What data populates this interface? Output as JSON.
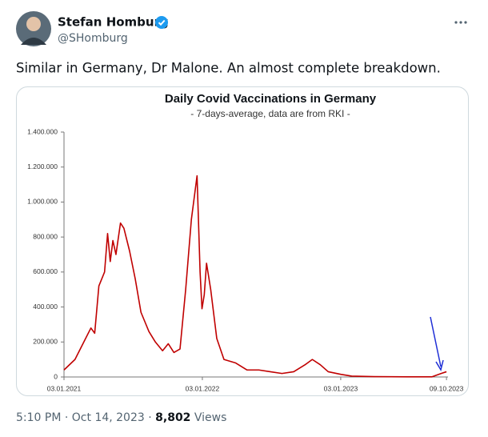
{
  "tweet": {
    "name": "Stefan Homburg",
    "handle": "@SHomburg",
    "text": "Similar in Germany, Dr Malone. An almost complete breakdown.",
    "time": "5:10 PM",
    "date": "Oct 14, 2023",
    "separator": "·",
    "views_count": "8,802",
    "views_label": "Views"
  },
  "chart_data": {
    "type": "line",
    "title": "Daily Covid Vaccinations in Germany",
    "subtitle": "- 7-days-average, data are from RKI -",
    "x": [
      "2021-01-03",
      "2021-02-01",
      "2021-03-01",
      "2021-03-15",
      "2021-03-25",
      "2021-04-05",
      "2021-04-20",
      "2021-04-28",
      "2021-05-05",
      "2021-05-12",
      "2021-05-20",
      "2021-06-01",
      "2021-06-10",
      "2021-06-25",
      "2021-07-10",
      "2021-07-25",
      "2021-08-15",
      "2021-09-01",
      "2021-09-20",
      "2021-10-05",
      "2021-10-20",
      "2021-11-05",
      "2021-11-20",
      "2021-12-05",
      "2021-12-20",
      "2021-12-28",
      "2022-01-02",
      "2022-01-08",
      "2022-01-14",
      "2022-01-25",
      "2022-02-10",
      "2022-03-01",
      "2022-04-01",
      "2022-05-01",
      "2022-06-01",
      "2022-07-01",
      "2022-08-01",
      "2022-09-01",
      "2022-10-01",
      "2022-10-20",
      "2022-11-10",
      "2022-12-01",
      "2023-01-03",
      "2023-02-01",
      "2023-04-01",
      "2023-07-01",
      "2023-09-01",
      "2023-09-25",
      "2023-10-09"
    ],
    "series": [
      {
        "name": "Daily vaccinations",
        "color": "#c00000",
        "values": [
          40000,
          100000,
          220000,
          280000,
          250000,
          520000,
          600000,
          820000,
          660000,
          780000,
          700000,
          880000,
          850000,
          720000,
          560000,
          370000,
          260000,
          200000,
          150000,
          190000,
          140000,
          160000,
          500000,
          900000,
          1150000,
          600000,
          390000,
          470000,
          650000,
          500000,
          220000,
          100000,
          80000,
          40000,
          40000,
          30000,
          20000,
          30000,
          70000,
          100000,
          70000,
          30000,
          15000,
          5000,
          2000,
          1000,
          1000,
          20000,
          30000
        ]
      }
    ],
    "xlim": [
      "2021-01-03",
      "2023-10-13"
    ],
    "xticks": [
      {
        "value": "2021-01-03",
        "label": "03.01.2021"
      },
      {
        "value": "2022-01-03",
        "label": "03.01.2022"
      },
      {
        "value": "2023-01-03",
        "label": "03.01.2023"
      },
      {
        "value": "2023-10-09",
        "label": "09.10.2023"
      }
    ],
    "ylim": [
      0,
      1400000
    ],
    "yticks": [
      0,
      {
        "value": 200000,
        "label": "200.000"
      },
      {
        "value": 400000,
        "label": "400.000"
      },
      {
        "value": 600000,
        "label": "600.000"
      },
      {
        "value": 800000,
        "label": "800.000"
      },
      {
        "value": 1000000,
        "label": "1.000.000"
      },
      {
        "value": 1200000,
        "label": "1.200.000"
      },
      {
        "value": 1400000,
        "label": "1.400.000"
      }
    ],
    "grid": false
  }
}
